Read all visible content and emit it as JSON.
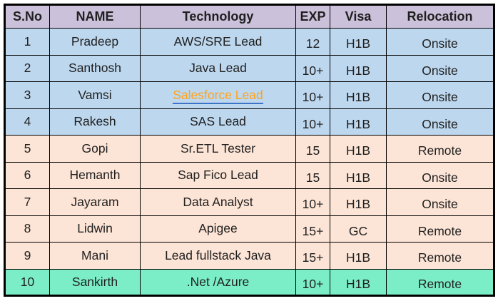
{
  "table": {
    "columns": [
      {
        "key": "sno",
        "label": "S.No"
      },
      {
        "key": "name",
        "label": "NAME"
      },
      {
        "key": "technology",
        "label": "Technology"
      },
      {
        "key": "exp",
        "label": "EXP"
      },
      {
        "key": "visa",
        "label": "Visa"
      },
      {
        "key": "relocation",
        "label": "Relocation"
      }
    ],
    "rows": [
      {
        "sno": "1",
        "name": "Pradeep",
        "technology": "AWS/SRE Lead",
        "exp": "12",
        "visa": "H1B",
        "relocation": "Onsite",
        "group": "blue",
        "technology_is_link": false
      },
      {
        "sno": "2",
        "name": "Santhosh",
        "technology": "Java Lead",
        "exp": "10+",
        "visa": "H1B",
        "relocation": "Onsite",
        "group": "blue",
        "technology_is_link": false
      },
      {
        "sno": "3",
        "name": "Vamsi",
        "technology": "Salesforce Lead",
        "exp": "10+",
        "visa": "H1B",
        "relocation": "Onsite",
        "group": "blue",
        "technology_is_link": true
      },
      {
        "sno": "4",
        "name": "Rakesh",
        "technology": "SAS Lead",
        "exp": "10+",
        "visa": "H1B",
        "relocation": "Onsite",
        "group": "blue",
        "technology_is_link": false
      },
      {
        "sno": "5",
        "name": "Gopi",
        "technology": "Sr.ETL Tester",
        "exp": "15",
        "visa": "H1B",
        "relocation": "Remote",
        "group": "peach",
        "technology_is_link": false
      },
      {
        "sno": "6",
        "name": "Hemanth",
        "technology": "Sap Fico Lead",
        "exp": "15",
        "visa": "H1B",
        "relocation": "Onsite",
        "group": "peach",
        "technology_is_link": false
      },
      {
        "sno": "7",
        "name": "Jayaram",
        "technology": "Data Analyst",
        "exp": "10+",
        "visa": "H1B",
        "relocation": "Onsite",
        "group": "peach",
        "technology_is_link": false
      },
      {
        "sno": "8",
        "name": "Lidwin",
        "technology": "Apigee",
        "exp": "15+",
        "visa": "GC",
        "relocation": "Remote",
        "group": "peach",
        "technology_is_link": false
      },
      {
        "sno": "9",
        "name": "Mani",
        "technology": "Lead fullstack Java",
        "exp": "15+",
        "visa": "H1B",
        "relocation": "Remote",
        "group": "peach",
        "technology_is_link": false
      },
      {
        "sno": "10",
        "name": "Sankirth",
        "technology": ".Net /Azure",
        "exp": "10+",
        "visa": "H1B",
        "relocation": "Remote",
        "group": "teal",
        "technology_is_link": false
      }
    ]
  },
  "colors": {
    "header_bg": "#ccc1da",
    "group_blue": "#bdd7ee",
    "group_peach": "#fce4d6",
    "group_teal": "#7beec8",
    "link_text": "#ffa319",
    "link_underline": "#3e73c8",
    "border": "#000000",
    "text": "#1f1f1f"
  }
}
